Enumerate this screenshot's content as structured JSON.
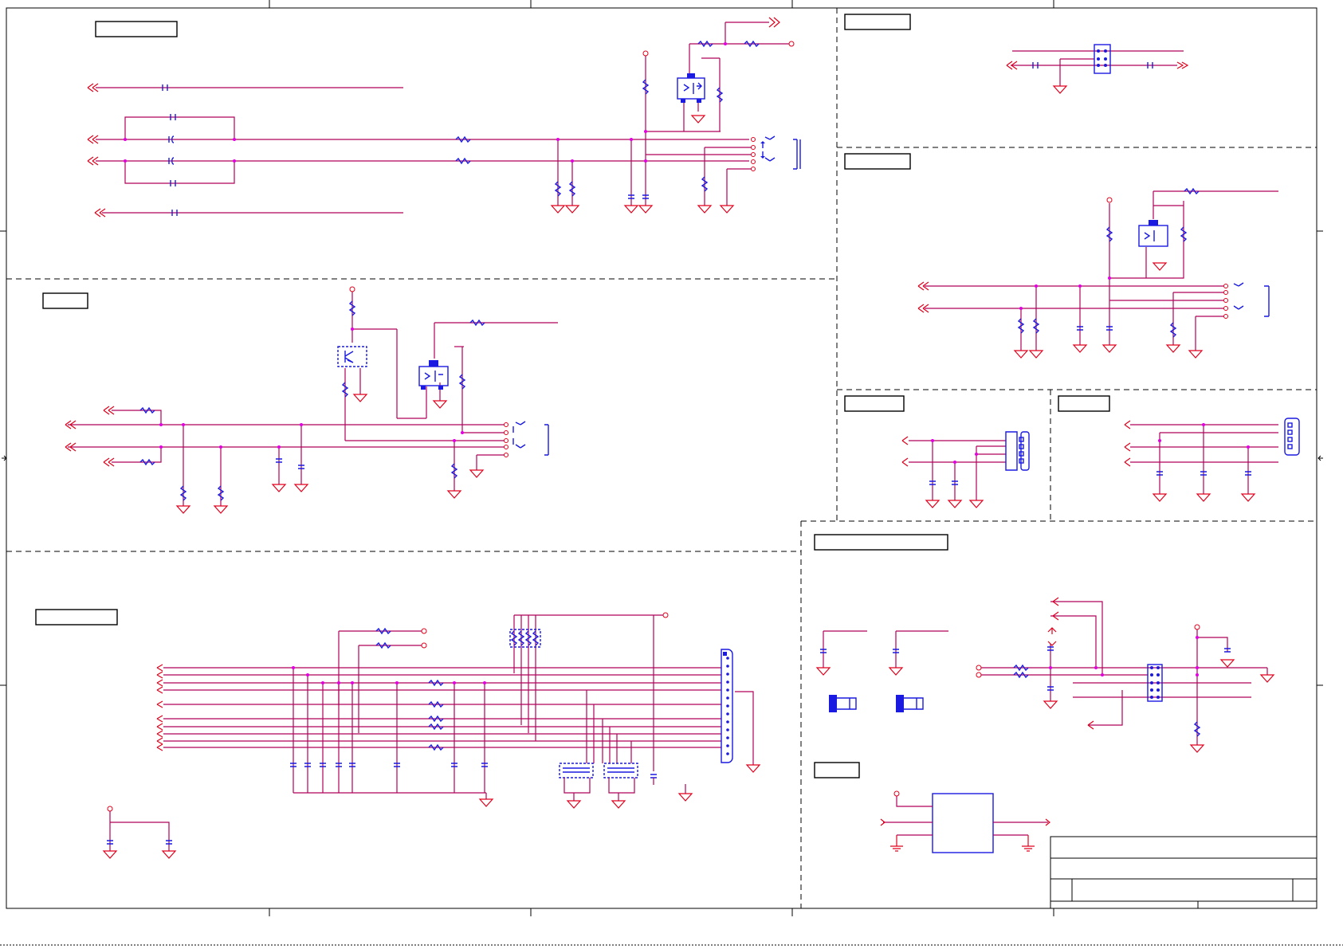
{
  "diagram": {
    "type": "schematic",
    "sections": [
      {
        "id": "sec-top-left"
      },
      {
        "id": "sec-mid-left"
      },
      {
        "id": "sec-bottom-left"
      },
      {
        "id": "sec-top-right-a"
      },
      {
        "id": "sec-top-right-b"
      },
      {
        "id": "sec-right-c"
      },
      {
        "id": "sec-right-d"
      },
      {
        "id": "sec-bottom-right"
      },
      {
        "id": "sec-bottom-right-sub"
      }
    ],
    "colors": {
      "wire": "#b0005a",
      "power": "#e0001c",
      "component": "#1a1ae0",
      "junction": "#e000e0",
      "frame": "#000000"
    }
  }
}
